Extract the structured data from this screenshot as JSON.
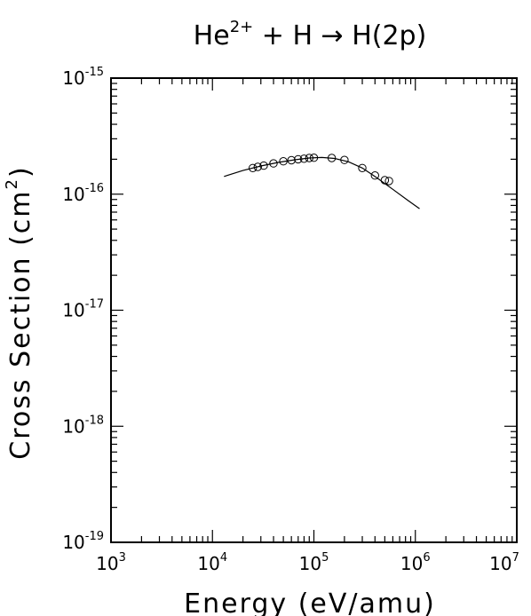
{
  "chart_data": {
    "type": "scatter",
    "title": {
      "base": "He",
      "superscript": "2+",
      "rest": " + H → H(2p)"
    },
    "xlabel": "Energy (eV/amu)",
    "ylabel": {
      "base": "Cross Section (cm",
      "superscript": "2",
      "rest": ")"
    },
    "x_scale": "log",
    "y_scale": "log",
    "xlim": [
      1000,
      10000000
    ],
    "ylim": [
      1e-19,
      1e-15
    ],
    "x_ticks": [
      {
        "base": "10",
        "exp": "3",
        "value": 1000
      },
      {
        "base": "10",
        "exp": "4",
        "value": 10000
      },
      {
        "base": "10",
        "exp": "5",
        "value": 100000
      },
      {
        "base": "10",
        "exp": "6",
        "value": 1000000
      },
      {
        "base": "10",
        "exp": "7",
        "value": 10000000
      }
    ],
    "y_ticks": [
      {
        "base": "10",
        "exp": "-15",
        "value": 1e-15
      },
      {
        "base": "10",
        "exp": "-16",
        "value": 1e-16
      },
      {
        "base": "10",
        "exp": "-17",
        "value": 1e-17
      },
      {
        "base": "10",
        "exp": "-18",
        "value": 1e-18
      },
      {
        "base": "10",
        "exp": "-19",
        "value": 1e-19
      }
    ],
    "grid": false,
    "series": [
      {
        "kind": "fit-line",
        "x": [
          13000,
          20000,
          30000,
          45000,
          65000,
          90000,
          120000,
          160000,
          220000,
          300000,
          420000,
          600000,
          850000,
          1100000
        ],
        "y": [
          1.42e-16,
          1.6e-16,
          1.75e-16,
          1.88e-16,
          1.98e-16,
          2.05e-16,
          2.07e-16,
          2.03e-16,
          1.9e-16,
          1.68e-16,
          1.38e-16,
          1.1e-16,
          8.8e-17,
          7.5e-17
        ]
      },
      {
        "kind": "data-points",
        "x": [
          25000,
          28000,
          32000,
          40000,
          50000,
          60000,
          70000,
          80000,
          90000,
          100000,
          150000,
          200000,
          300000,
          400000,
          500000,
          550000
        ],
        "y": [
          1.68e-16,
          1.72e-16,
          1.76e-16,
          1.84e-16,
          1.92e-16,
          1.96e-16,
          2e-16,
          2.02e-16,
          2.05e-16,
          2.06e-16,
          2.05e-16,
          1.97e-16,
          1.68e-16,
          1.45e-16,
          1.32e-16,
          1.3e-16
        ]
      }
    ]
  }
}
